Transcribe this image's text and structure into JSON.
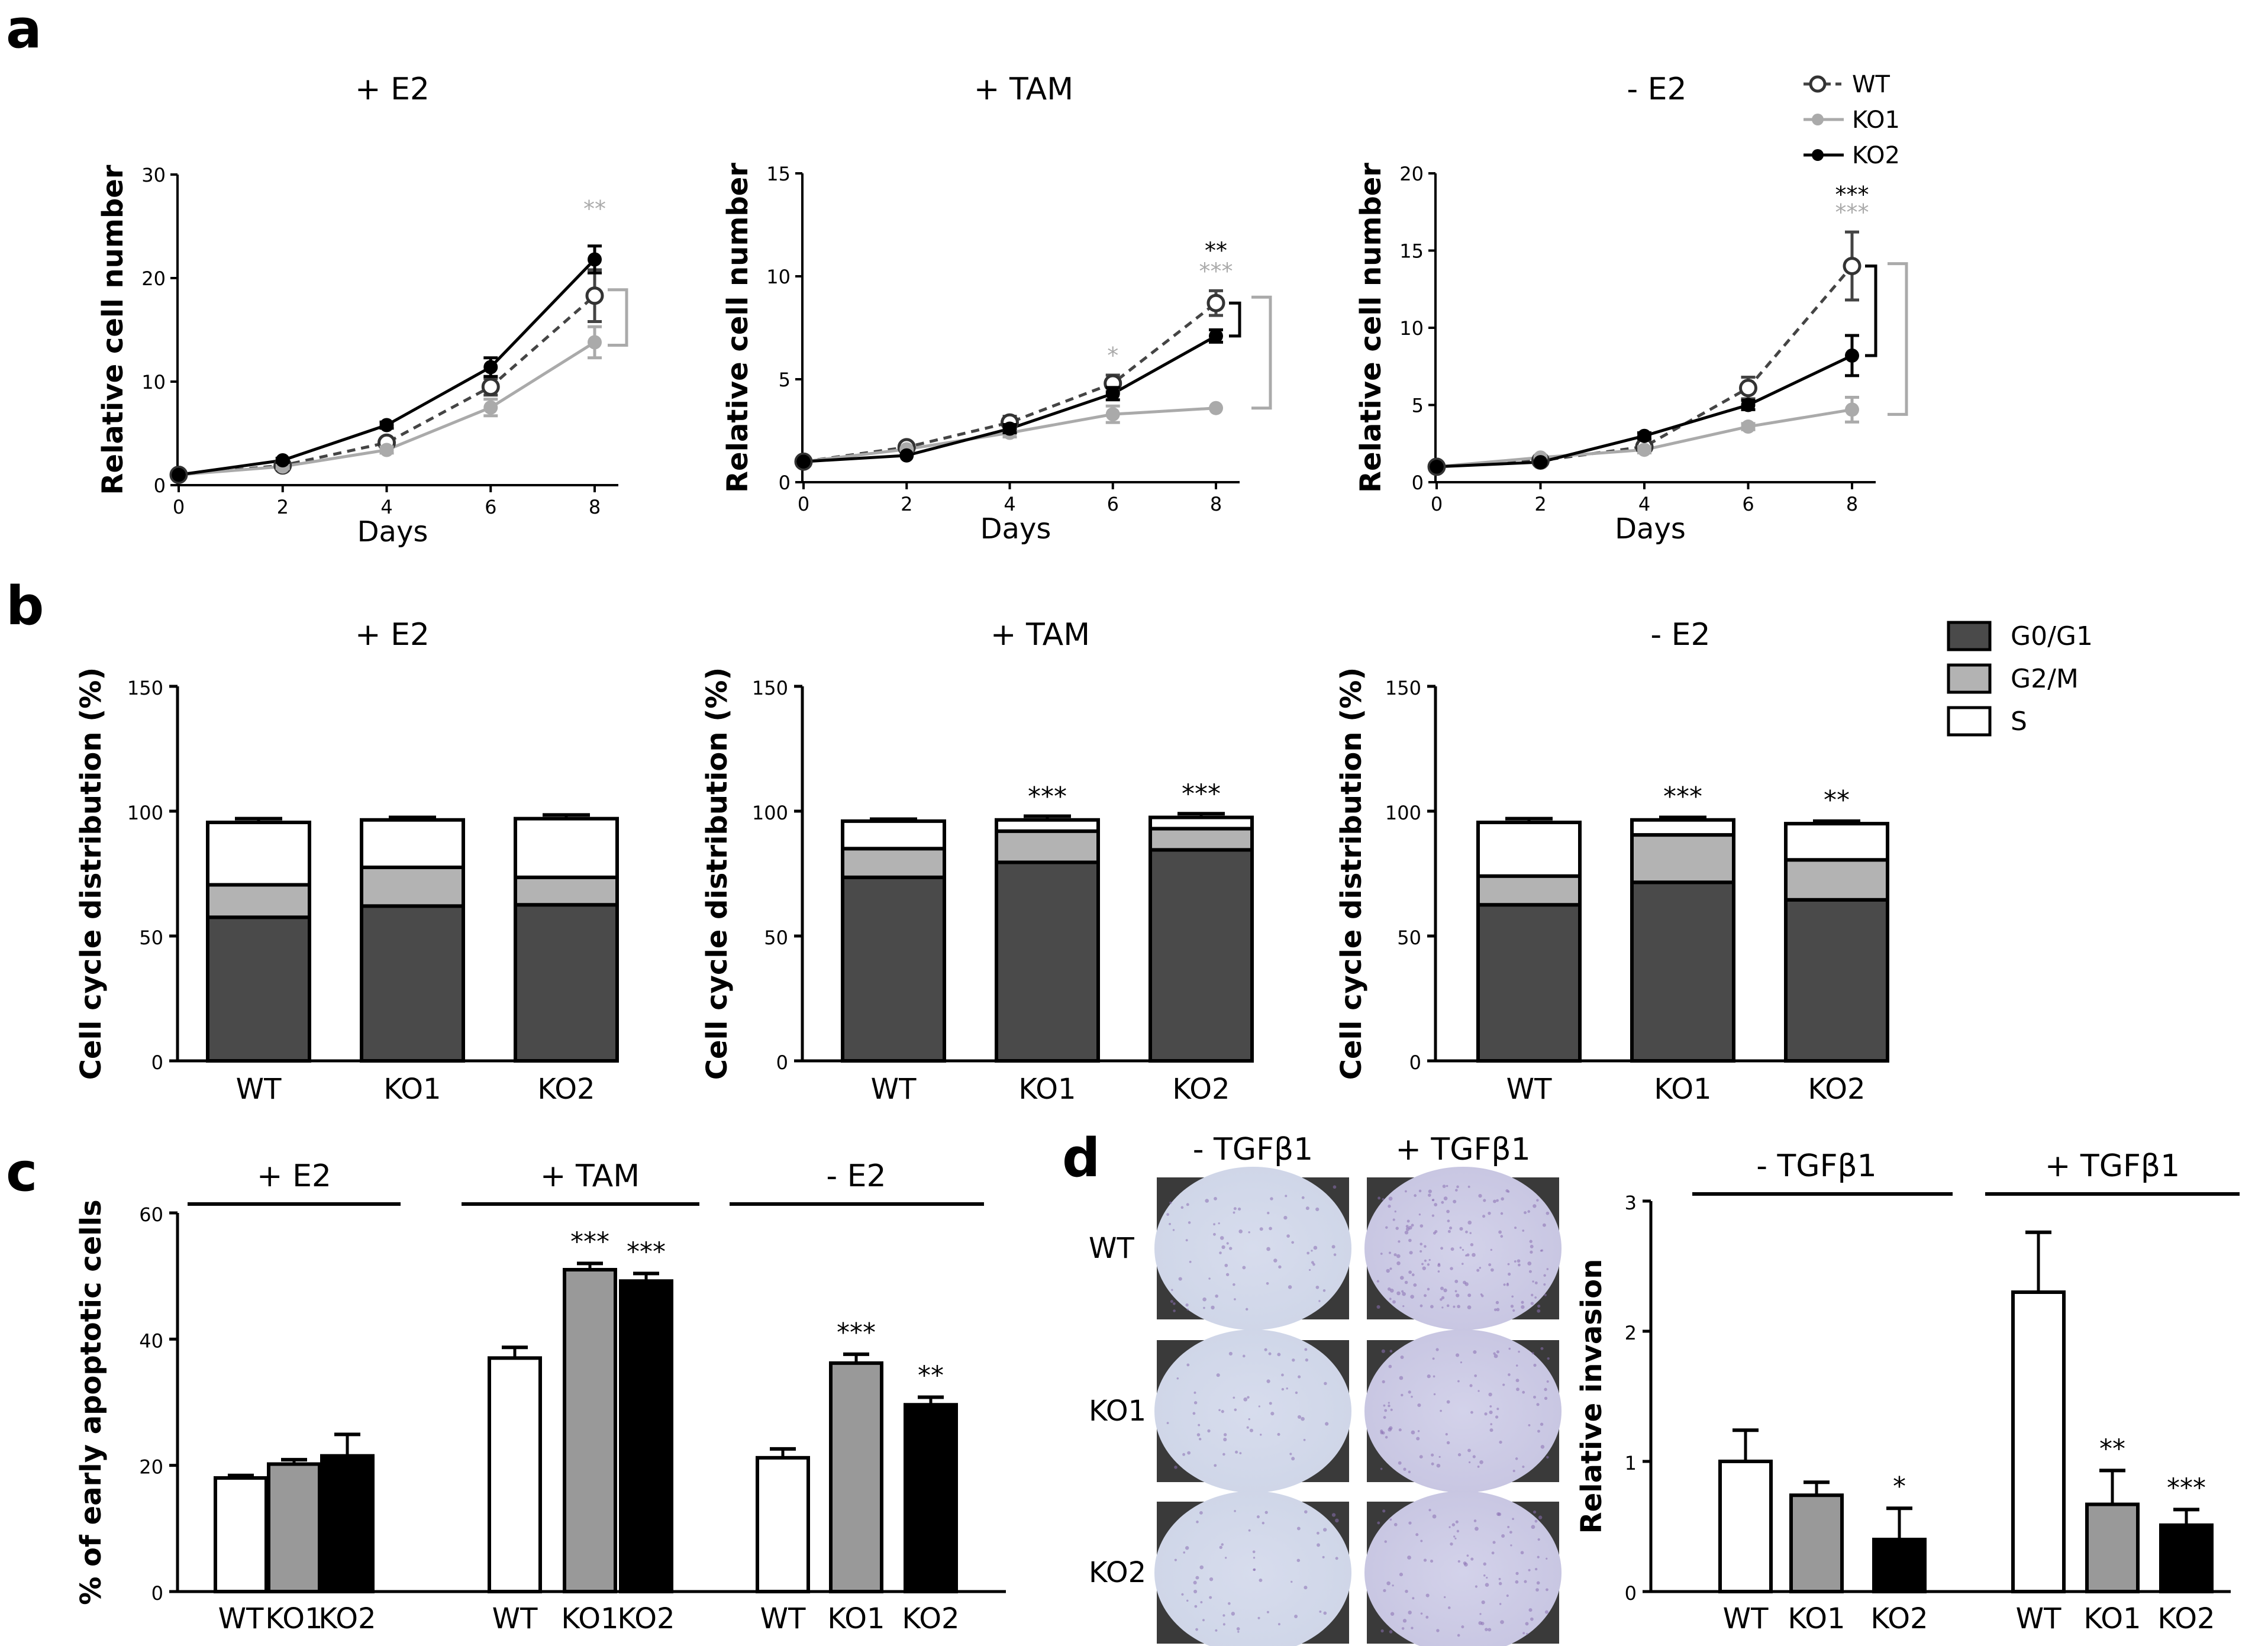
{
  "panels": {
    "a": "a",
    "b": "b",
    "c": "c",
    "d": "d"
  },
  "colors": {
    "WT": "#444444",
    "KO1": "#aaaaaa",
    "KO2": "#000000",
    "G0G1": "#4a4a4a",
    "G2M": "#b3b3b3",
    "S": "#ffffff",
    "KO1bar": "#999999"
  },
  "chart_data": [
    {
      "id": "a1",
      "type": "line",
      "title": "+ E2",
      "xlabel": "Days",
      "ylabel": "Relative cell number",
      "x": [
        0,
        2,
        4,
        6,
        8
      ],
      "xticks": [
        "0",
        "2",
        "4",
        "6",
        "8"
      ],
      "yticks": [
        "0",
        "10",
        "20",
        "30"
      ],
      "ylim": [
        0,
        30
      ],
      "series": [
        {
          "name": "WT",
          "values": [
            1,
            1.9,
            4.1,
            9.5,
            18.3
          ],
          "err": [
            0.1,
            0.2,
            0.3,
            0.8,
            2.5
          ]
        },
        {
          "name": "KO1",
          "values": [
            1,
            1.8,
            3.4,
            7.5,
            13.8
          ],
          "err": [
            0.1,
            0.2,
            0.3,
            0.8,
            1.5
          ]
        },
        {
          "name": "KO2",
          "values": [
            1,
            2.4,
            5.8,
            11.4,
            21.8
          ],
          "err": [
            0.1,
            0.2,
            0.3,
            0.9,
            1.3
          ]
        }
      ],
      "annotations": [
        {
          "text": "**",
          "series": "KO1"
        }
      ]
    },
    {
      "id": "a2",
      "type": "line",
      "title": "+ TAM",
      "xlabel": "Days",
      "ylabel": "Relative cell number",
      "x": [
        0,
        2,
        4,
        6,
        8
      ],
      "xticks": [
        "0",
        "2",
        "4",
        "6",
        "8"
      ],
      "yticks": [
        "0",
        "5",
        "10",
        "15"
      ],
      "ylim": [
        0,
        15
      ],
      "series": [
        {
          "name": "WT",
          "values": [
            1,
            1.7,
            2.9,
            4.8,
            8.7
          ],
          "err": [
            0.05,
            0.1,
            0.3,
            0.4,
            0.6
          ]
        },
        {
          "name": "KO1",
          "values": [
            1,
            1.6,
            2.4,
            3.3,
            3.6
          ],
          "err": [
            0.05,
            0.1,
            0.2,
            0.4,
            0.1
          ]
        },
        {
          "name": "KO2",
          "values": [
            1,
            1.3,
            2.6,
            4.3,
            7.1
          ],
          "err": [
            0.05,
            0.1,
            0.2,
            0.3,
            0.3
          ]
        }
      ],
      "annotations": [
        {
          "text": "*",
          "series": "KO1"
        },
        {
          "text": "***",
          "series": "KO1"
        },
        {
          "text": "**",
          "series": "KO2"
        }
      ]
    },
    {
      "id": "a3",
      "type": "line",
      "title": "- E2",
      "xlabel": "Days",
      "ylabel": "Relative cell number",
      "x": [
        0,
        2,
        4,
        6,
        8
      ],
      "xticks": [
        "0",
        "2",
        "4",
        "6",
        "8"
      ],
      "yticks": [
        "0",
        "5",
        "10",
        "15",
        "20"
      ],
      "ylim": [
        0,
        20
      ],
      "series": [
        {
          "name": "WT",
          "values": [
            1,
            1.4,
            2.3,
            6.1,
            14.0
          ],
          "err": [
            0.05,
            0.1,
            0.2,
            0.7,
            2.2
          ]
        },
        {
          "name": "KO1",
          "values": [
            1,
            1.6,
            2.1,
            3.6,
            4.7
          ],
          "err": [
            0.05,
            0.1,
            0.2,
            0.2,
            0.8
          ]
        },
        {
          "name": "KO2",
          "values": [
            1,
            1.3,
            3.0,
            5.0,
            8.2
          ],
          "err": [
            0.05,
            0.1,
            0.2,
            0.3,
            1.3
          ]
        }
      ],
      "annotations": [
        {
          "text": "***",
          "series": "KO1"
        },
        {
          "text": "***",
          "series": "KO2"
        }
      ],
      "legend": [
        "WT",
        "KO1",
        "KO2"
      ]
    },
    {
      "id": "b1",
      "type": "bar",
      "stacked": true,
      "title": "+ E2",
      "ylabel": "Cell cycle distribution  (%)",
      "categories": [
        "WT",
        "KO1",
        "KO2"
      ],
      "yticks": [
        "0",
        "50",
        "100",
        "150"
      ],
      "ylim": [
        0,
        150
      ],
      "series": [
        {
          "name": "G0/G1",
          "values": [
            57.5,
            62.0,
            62.5
          ],
          "err": [
            1.5,
            1.0,
            1.5
          ]
        },
        {
          "name": "G2/M",
          "values": [
            13.0,
            15.5,
            11.0
          ],
          "err": [
            1.0,
            1.0,
            1.0
          ]
        },
        {
          "name": "S",
          "values": [
            25.0,
            19.0,
            23.5
          ],
          "err": [
            1.5,
            1.0,
            1.5
          ]
        }
      ],
      "annotations": []
    },
    {
      "id": "b2",
      "type": "bar",
      "stacked": true,
      "title": "+ TAM",
      "ylabel": "Cell cycle distribution  (%)",
      "categories": [
        "WT",
        "KO1",
        "KO2"
      ],
      "yticks": [
        "0",
        "50",
        "100",
        "150"
      ],
      "ylim": [
        0,
        150
      ],
      "series": [
        {
          "name": "G0/G1",
          "values": [
            73.5,
            79.5,
            84.5
          ],
          "err": [
            1.5,
            1.0,
            1.0
          ]
        },
        {
          "name": "G2/M",
          "values": [
            11.5,
            12.5,
            8.5
          ],
          "err": [
            1.0,
            1.0,
            1.0
          ]
        },
        {
          "name": "S",
          "values": [
            11.0,
            4.5,
            4.5
          ],
          "err": [
            0.8,
            1.5,
            1.5
          ]
        }
      ],
      "annotations": [
        {
          "category": "KO1",
          "text": "***"
        },
        {
          "category": "KO2",
          "text": "***"
        }
      ]
    },
    {
      "id": "b3",
      "type": "bar",
      "stacked": true,
      "title": "- E2",
      "ylabel": "Cell cycle distribution  (%)",
      "categories": [
        "WT",
        "KO1",
        "KO2"
      ],
      "yticks": [
        "0",
        "50",
        "100",
        "150"
      ],
      "ylim": [
        0,
        150
      ],
      "series": [
        {
          "name": "G0/G1",
          "values": [
            62.5,
            71.5,
            64.5
          ],
          "err": [
            1.5,
            1.0,
            1.5
          ]
        },
        {
          "name": "G2/M",
          "values": [
            11.5,
            19.0,
            16.0
          ],
          "err": [
            1.0,
            1.0,
            1.0
          ]
        },
        {
          "name": "S",
          "values": [
            21.5,
            6.0,
            14.5
          ],
          "err": [
            1.5,
            1.0,
            1.0
          ]
        }
      ],
      "annotations": [
        {
          "category": "KO1",
          "text": "***"
        },
        {
          "category": "KO2",
          "text": "**"
        }
      ],
      "legend": [
        "G0/G1",
        "G2/M",
        "S"
      ]
    },
    {
      "id": "c",
      "type": "bar",
      "ylabel": "% of early apoptotic cells",
      "yticks": [
        "0",
        "20",
        "40",
        "60"
      ],
      "ylim": [
        0,
        60
      ],
      "groups": [
        {
          "label": "+ E2",
          "categories": [
            "WT",
            "KO1",
            "KO2"
          ],
          "values": [
            18.0,
            20.2,
            21.5
          ],
          "err": [
            0.4,
            0.7,
            3.4
          ],
          "annotations": [
            "",
            "",
            ""
          ]
        },
        {
          "label": "+ TAM",
          "categories": [
            "WT",
            "KO1",
            "KO2"
          ],
          "values": [
            37.0,
            51.0,
            49.2
          ],
          "err": [
            1.7,
            1.0,
            1.2
          ],
          "annotations": [
            "",
            "***",
            "***"
          ]
        },
        {
          "label": "- E2",
          "categories": [
            "WT",
            "KO1",
            "KO2"
          ],
          "values": [
            21.2,
            36.2,
            29.6
          ],
          "err": [
            1.4,
            1.4,
            1.2
          ],
          "annotations": [
            "",
            "***",
            "**"
          ]
        }
      ]
    },
    {
      "id": "d",
      "type": "bar",
      "ylabel": "Relative invasion",
      "yticks": [
        "0",
        "1",
        "2",
        "3"
      ],
      "ylim": [
        0,
        3
      ],
      "groups": [
        {
          "label": "- TGFβ1",
          "categories": [
            "WT",
            "KO1",
            "KO2"
          ],
          "values": [
            1.0,
            0.74,
            0.4
          ],
          "err": [
            0.24,
            0.1,
            0.24
          ],
          "annotations": [
            "",
            "",
            "*"
          ]
        },
        {
          "label": "+ TGFβ1",
          "categories": [
            "WT",
            "KO1",
            "KO2"
          ],
          "values": [
            2.3,
            0.67,
            0.51
          ],
          "err": [
            0.46,
            0.26,
            0.12
          ],
          "annotations": [
            "",
            "**",
            "***"
          ]
        }
      ]
    }
  ],
  "micrographs": {
    "columns": [
      "- TGFβ1",
      "+ TGFβ1"
    ],
    "rows": [
      "WT",
      "KO1",
      "KO2"
    ]
  }
}
